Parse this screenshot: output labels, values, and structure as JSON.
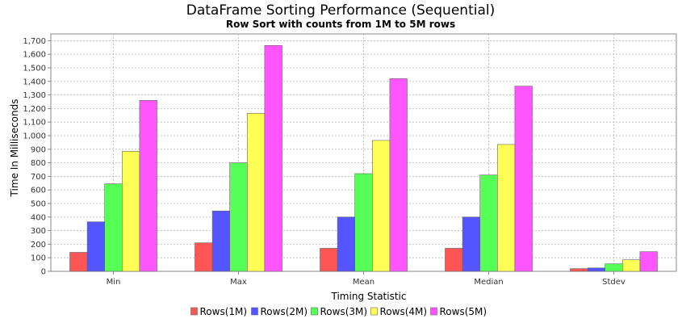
{
  "chart_data": {
    "type": "bar",
    "title": "DataFrame Sorting Performance (Sequential)",
    "subtitle": "Row Sort with counts from 1M to 5M rows",
    "xlabel": "Timing Statistic",
    "ylabel": "Time In Milliseconds",
    "ylim": [
      0,
      1750
    ],
    "yticks": [
      0,
      100,
      200,
      300,
      400,
      500,
      600,
      700,
      800,
      900,
      1000,
      1100,
      1200,
      1300,
      1400,
      1500,
      1600,
      1700
    ],
    "ytick_labels": [
      "0",
      "100",
      "200",
      "300",
      "400",
      "500",
      "600",
      "700",
      "800",
      "900",
      "1,000",
      "1,100",
      "1,200",
      "1,300",
      "1,400",
      "1,500",
      "1,600",
      "1,700"
    ],
    "grid": true,
    "legend_position": "bottom",
    "categories": [
      "Min",
      "Max",
      "Mean",
      "Median",
      "Stdev"
    ],
    "series": [
      {
        "name": "Rows(1M)",
        "color": "#ff5555",
        "values": [
          140,
          210,
          170,
          170,
          20
        ]
      },
      {
        "name": "Rows(2M)",
        "color": "#5555ff",
        "values": [
          365,
          445,
          400,
          400,
          25
        ]
      },
      {
        "name": "Rows(3M)",
        "color": "#55ff55",
        "values": [
          645,
          800,
          720,
          710,
          55
        ]
      },
      {
        "name": "Rows(4M)",
        "color": "#ffff55",
        "values": [
          885,
          1165,
          965,
          935,
          85
        ]
      },
      {
        "name": "Rows(5M)",
        "color": "#ff55ff",
        "values": [
          1260,
          1665,
          1420,
          1365,
          145
        ]
      }
    ]
  }
}
